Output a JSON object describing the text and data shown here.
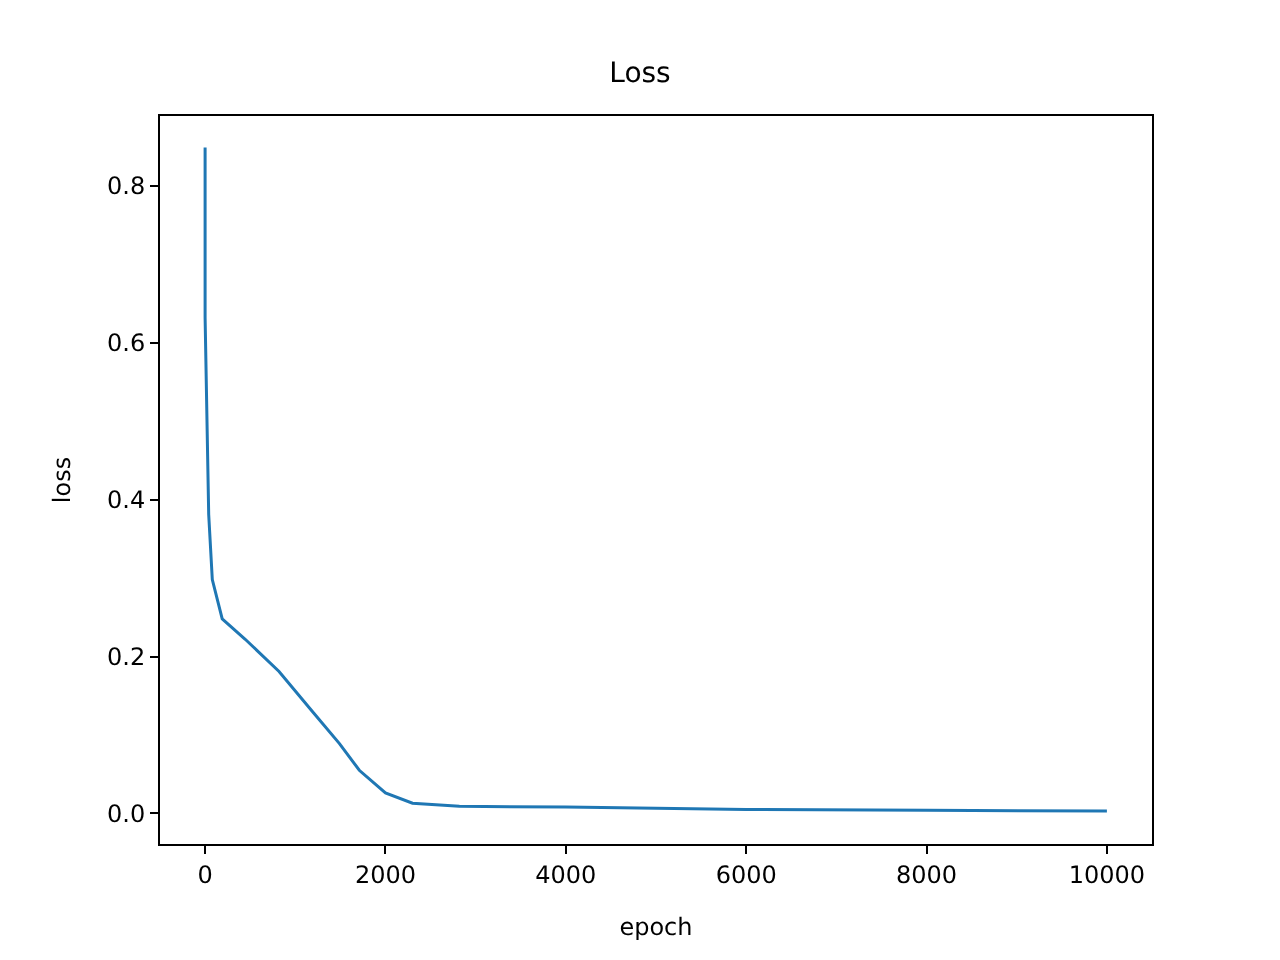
{
  "chart_data": {
    "type": "line",
    "title": "Loss",
    "xlabel": "epoch",
    "ylabel": "loss",
    "x": [
      0,
      0,
      40,
      80,
      190,
      445,
      820,
      1190,
      1490,
      1710,
      2000,
      2300,
      2820,
      4000,
      6000,
      8000,
      10000
    ],
    "series": [
      {
        "color": "#1f77b4",
        "values": [
          0.849,
          0.632,
          0.381,
          0.298,
          0.248,
          0.222,
          0.181,
          0.13,
          0.089,
          0.055,
          0.026,
          0.013,
          0.009,
          0.008,
          0.005,
          0.004,
          0.003
        ]
      }
    ],
    "xlim": [
      -500,
      10500
    ],
    "ylim": [
      -0.039,
      0.889
    ],
    "xticks": [
      0,
      2000,
      4000,
      6000,
      8000,
      10000
    ],
    "yticks": [
      {
        "value": 0,
        "label": "0.0"
      },
      {
        "value": 0.2,
        "label": "0.2"
      },
      {
        "value": 0.4,
        "label": "0.4"
      },
      {
        "value": 0.6,
        "label": "0.6"
      },
      {
        "value": 0.8,
        "label": "0.8"
      }
    ],
    "legend": false,
    "marker": "none",
    "line_style": "solid"
  }
}
